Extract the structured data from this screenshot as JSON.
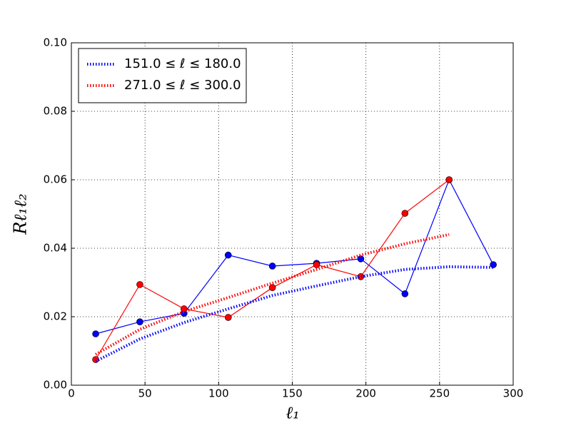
{
  "chart_data": {
    "type": "line",
    "xlabel": "ℓ₁",
    "ylabel": "Rℓ₁ℓ₂",
    "xlim": [
      0,
      300
    ],
    "xticks": [
      0,
      50,
      100,
      150,
      200,
      250,
      300
    ],
    "ylim": [
      0,
      0.1
    ],
    "yticks": [
      {
        "value": 0,
        "label": "0.00"
      },
      {
        "value": 0.02,
        "label": "0.02"
      },
      {
        "value": 0.04,
        "label": "0.04"
      },
      {
        "value": 0.06,
        "label": "0.06"
      },
      {
        "value": 0.08,
        "label": "0.08"
      },
      {
        "value": 0.1,
        "label": "0.10"
      }
    ],
    "grid": true,
    "legend": "upper left",
    "series": [
      {
        "color": "#0000ff",
        "style": "markers",
        "x": [
          16.5,
          46.5,
          76.5,
          106.5,
          136.5,
          166.5,
          196.5,
          226.5,
          256.5,
          286.5
        ],
        "values": [
          0.015,
          0.0185,
          0.021,
          0.038,
          0.0348,
          0.0356,
          0.0369,
          0.0267,
          0.06,
          0.0352
        ]
      },
      {
        "color": "#ff0000",
        "style": "markers",
        "x": [
          16.5,
          46.5,
          76.5,
          106.5,
          136.5,
          166.5,
          196.5,
          226.5,
          256.5
        ],
        "values": [
          0.0075,
          0.0294,
          0.0223,
          0.0198,
          0.0285,
          0.0352,
          0.0317,
          0.0502,
          0.06
        ]
      },
      {
        "name": "151.0 ≤ ℓ ≤ 180.0",
        "color": "#0000ff",
        "style": "dotted",
        "x": [
          16.5,
          46.5,
          76.5,
          106.5,
          136.5,
          166.5,
          196.5,
          226.5,
          256.5,
          286.5
        ],
        "values": [
          0.007,
          0.0135,
          0.0183,
          0.0223,
          0.0262,
          0.029,
          0.0317,
          0.0338,
          0.0346,
          0.0344
        ]
      },
      {
        "name": "271.0 ≤ ℓ ≤ 300.0",
        "color": "#ff0000",
        "style": "dotted",
        "x": [
          16.5,
          46.5,
          76.5,
          106.5,
          136.5,
          166.5,
          196.5,
          226.5,
          256.5
        ],
        "values": [
          0.009,
          0.0163,
          0.0215,
          0.0256,
          0.0298,
          0.0338,
          0.038,
          0.0413,
          0.044
        ]
      }
    ]
  }
}
